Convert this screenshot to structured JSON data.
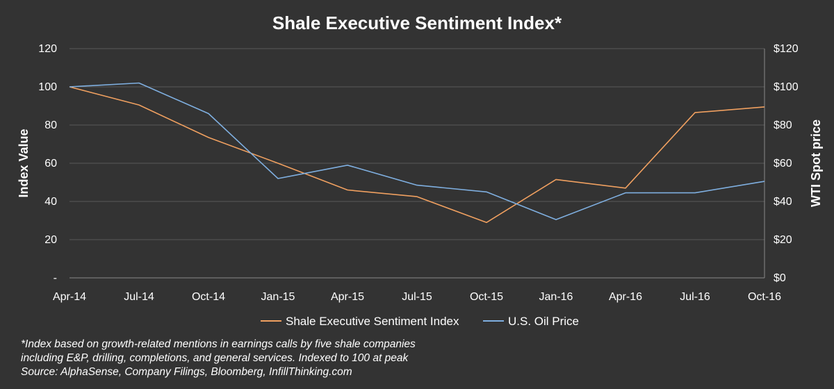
{
  "chart_data": {
    "type": "line",
    "title": "Shale Executive Sentiment Index*",
    "categories": [
      "Apr-14",
      "Jul-14",
      "Oct-14",
      "Jan-15",
      "Apr-15",
      "Jul-15",
      "Oct-15",
      "Jan-16",
      "Apr-16",
      "Jul-16",
      "Oct-16"
    ],
    "ylabel": "Index Value",
    "y2label": "WTI Spot price",
    "ylim": [
      0,
      120
    ],
    "y2lim": [
      0,
      120
    ],
    "yticks": [
      "-",
      "20",
      "40",
      "60",
      "80",
      "100",
      "120"
    ],
    "y2ticks": [
      "$0",
      "$20",
      "$40",
      "$60",
      "$80",
      "$100",
      "$120"
    ],
    "grid": true,
    "legend_position": "bottom",
    "series": [
      {
        "name": "Shale Executive Sentiment Index",
        "axis": "left",
        "color": "#f0a060",
        "values": [
          100,
          90.5,
          73.5,
          60,
          46,
          42.5,
          29,
          51.5,
          47,
          86.5,
          89.5
        ]
      },
      {
        "name": "U.S. Oil Price",
        "axis": "right",
        "color": "#7fafe0",
        "values": [
          100,
          102,
          86,
          52,
          59,
          48.5,
          45,
          30.5,
          44.5,
          44.5,
          50.5
        ]
      }
    ]
  },
  "footnote": [
    "*Index based on growth-related mentions in earnings calls by five shale companies",
    "including E&P, drilling, completions, and general services. Indexed to 100 at peak",
    "Source: AlphaSense, Company Filings, Bloomberg, InfillThinking.com"
  ]
}
